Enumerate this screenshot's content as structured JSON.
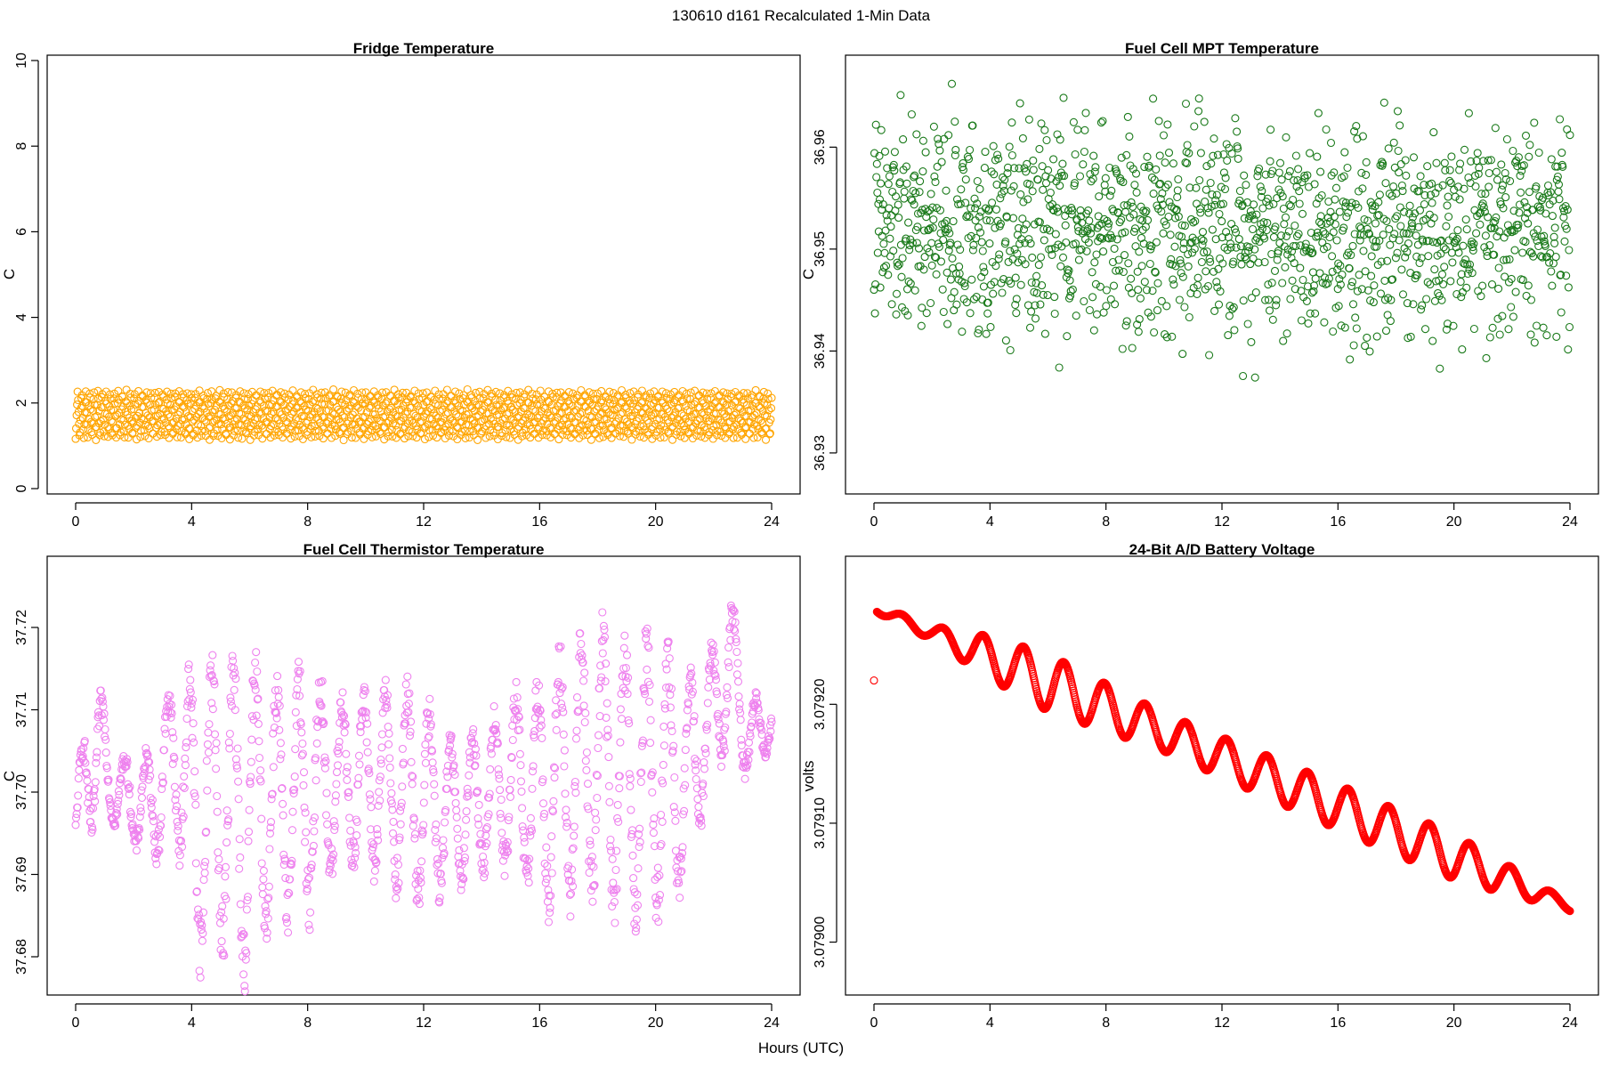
{
  "page": {
    "title": "130610   d161   Recalculated 1-Min Data",
    "x_axis_label": "Hours (UTC)"
  },
  "chart_data": [
    {
      "id": "fridge",
      "type": "scatter",
      "title": "Fridge Temperature",
      "xlabel": "",
      "ylabel": "C",
      "color": "#ffa500",
      "xlim": [
        0,
        24
      ],
      "ylim": [
        0,
        10
      ],
      "xticks": [
        0,
        4,
        8,
        12,
        16,
        20,
        24
      ],
      "xtick_labels": [
        "0",
        "4",
        "8",
        "12",
        "16",
        "20",
        "24"
      ],
      "yticks": [
        0,
        2,
        4,
        6,
        8,
        10
      ],
      "ytick_labels": [
        "0",
        "2",
        "4",
        "6",
        "8",
        "10"
      ],
      "series": [
        {
          "name": "Fridge Temperature",
          "pattern": "sawtooth_band",
          "x_start": 0,
          "x_end": 24,
          "n_points": 1440,
          "y_min": 1.15,
          "y_max": 2.3,
          "cycle_hours": 0.14
        }
      ]
    },
    {
      "id": "mpt",
      "type": "scatter",
      "title": "Fuel Cell MPT Temperature",
      "xlabel": "",
      "ylabel": "C",
      "color": "#1a7a1a",
      "xlim": [
        0,
        24
      ],
      "ylim": [
        36.9265,
        36.9685
      ],
      "xticks": [
        0,
        4,
        8,
        12,
        16,
        20,
        24
      ],
      "xtick_labels": [
        "0",
        "4",
        "8",
        "12",
        "16",
        "20",
        "24"
      ],
      "yticks": [
        36.93,
        36.94,
        36.95,
        36.96
      ],
      "ytick_labels": [
        "36.93",
        "36.94",
        "36.95",
        "36.96"
      ],
      "series": [
        {
          "name": "Fuel Cell MPT Temperature",
          "pattern": "random_scatter",
          "x_start": 0,
          "x_end": 24,
          "n_points": 1440,
          "y_mean": 36.952,
          "y_spread": 0.0065,
          "y_clip": [
            36.928,
            36.968
          ]
        }
      ]
    },
    {
      "id": "thermistor",
      "type": "scatter",
      "title": "Fuel Cell Thermistor Temperature",
      "xlabel": "",
      "ylabel": "C",
      "color": "#ee82ee",
      "xlim": [
        0,
        24
      ],
      "ylim": [
        37.676,
        37.728
      ],
      "xticks": [
        0,
        4,
        8,
        12,
        16,
        20,
        24
      ],
      "xtick_labels": [
        "0",
        "4",
        "8",
        "12",
        "16",
        "20",
        "24"
      ],
      "yticks": [
        37.68,
        37.69,
        37.7,
        37.71,
        37.72
      ],
      "ytick_labels": [
        "37.68",
        "37.69",
        "37.70",
        "37.71",
        "37.72"
      ],
      "series": [
        {
          "name": "Fuel Cell Thermistor Temperature",
          "pattern": "oscillating",
          "x_start": 0,
          "x_end": 24,
          "n_points": 1440,
          "cycle_hours": 0.75,
          "envelope_x": [
            0,
            0.3,
            0.7,
            1.2,
            2.5,
            3.5,
            4.2,
            5.0,
            5.7,
            6.3,
            7.0,
            8.0,
            9.0,
            10.0,
            11.0,
            12.0,
            13.0,
            14.0,
            15.0,
            16.0,
            17.0,
            18.0,
            19.0,
            20.0,
            21.0,
            22.0,
            22.6,
            23.2,
            24.0
          ],
          "envelope_low": [
            37.692,
            37.694,
            37.697,
            37.697,
            37.692,
            37.695,
            37.681,
            37.683,
            37.678,
            37.685,
            37.684,
            37.686,
            37.692,
            37.692,
            37.689,
            37.688,
            37.689,
            37.691,
            37.692,
            37.687,
            37.688,
            37.689,
            37.685,
            37.687,
            37.69,
            37.703,
            37.706,
            37.702,
            37.706
          ],
          "envelope_high": [
            37.699,
            37.708,
            37.716,
            37.704,
            37.704,
            37.715,
            37.712,
            37.716,
            37.713,
            37.714,
            37.712,
            37.714,
            37.711,
            37.711,
            37.713,
            37.71,
            37.705,
            37.707,
            37.711,
            37.712,
            37.717,
            37.719,
            37.716,
            37.718,
            37.712,
            37.717,
            37.724,
            37.711,
            37.712
          ]
        }
      ]
    },
    {
      "id": "battery",
      "type": "scatter",
      "title": "24-Bit A/D Battery Voltage",
      "xlabel": "",
      "ylabel": "volts",
      "color": "#ff0000",
      "xlim": [
        0,
        24
      ],
      "ylim": [
        3.07896,
        3.07932
      ],
      "xticks": [
        0,
        4,
        8,
        12,
        16,
        20,
        24
      ],
      "xtick_labels": [
        "0",
        "4",
        "8",
        "12",
        "16",
        "20",
        "24"
      ],
      "yticks": [
        3.079,
        3.0791,
        3.0792
      ],
      "ytick_labels": [
        "3.07900",
        "3.07910",
        "3.07920"
      ],
      "series": [
        {
          "name": "24-Bit A/D Battery Voltage",
          "pattern": "damped_trend_oscillation",
          "x_start": 0.1,
          "x_end": 24,
          "n_points": 1440,
          "y_start": 3.07928,
          "y_end": 3.07903,
          "cycle_hours": 1.4,
          "amp_hours": [
            0,
            0.5,
            2,
            4,
            6,
            10,
            16,
            20,
            22,
            23.5,
            24
          ],
          "amp_values": [
            2.5e-06,
            4e-06,
            6e-06,
            1.8e-05,
            2.4e-05,
            1.6e-05,
            1.9e-05,
            1.9e-05,
            1.2e-05,
            5e-06,
            4e-06
          ],
          "outliers": [
            {
              "x": 0.0,
              "y": 3.07922
            }
          ]
        }
      ]
    }
  ]
}
